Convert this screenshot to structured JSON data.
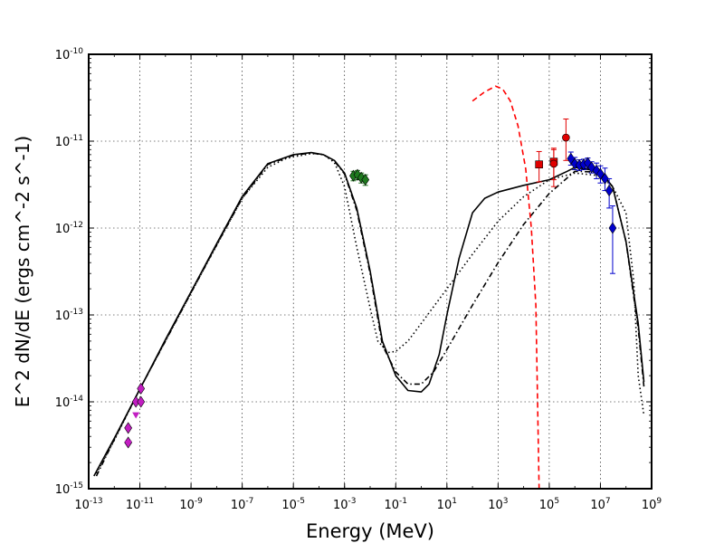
{
  "chart_data": {
    "type": "scatter",
    "title": "",
    "xlabel": "Energy (MeV)",
    "ylabel": "E^2 dN/dE (ergs cm^-2 s^-1)",
    "xscale": "log",
    "yscale": "log",
    "xlim": [
      1e-13,
      1000000000.0
    ],
    "ylim": [
      1e-15,
      1e-10
    ],
    "grid": true,
    "x_ticks": [
      {
        "base": "10",
        "exp": "-13",
        "value": 1e-13
      },
      {
        "base": "10",
        "exp": "-11",
        "value": 1e-11
      },
      {
        "base": "10",
        "exp": "-9",
        "value": 1e-09
      },
      {
        "base": "10",
        "exp": "-7",
        "value": 1e-07
      },
      {
        "base": "10",
        "exp": "-5",
        "value": 1e-05
      },
      {
        "base": "10",
        "exp": "-3",
        "value": 0.001
      },
      {
        "base": "10",
        "exp": "-1",
        "value": 0.1
      },
      {
        "base": "10",
        "exp": "1",
        "value": 10.0
      },
      {
        "base": "10",
        "exp": "3",
        "value": 1000.0
      },
      {
        "base": "10",
        "exp": "5",
        "value": 100000.0
      },
      {
        "base": "10",
        "exp": "7",
        "value": 10000000.0
      },
      {
        "base": "10",
        "exp": "9",
        "value": 1000000000.0
      }
    ],
    "y_ticks": [
      {
        "base": "10",
        "exp": "-15",
        "value": 1e-15
      },
      {
        "base": "10",
        "exp": "-14",
        "value": 1e-14
      },
      {
        "base": "10",
        "exp": "-13",
        "value": 1e-13
      },
      {
        "base": "10",
        "exp": "-12",
        "value": 1e-12
      },
      {
        "base": "10",
        "exp": "-11",
        "value": 1e-11
      },
      {
        "base": "10",
        "exp": "-10",
        "value": 1e-10
      }
    ],
    "series": [
      {
        "style": "solid",
        "color": "#000000",
        "x": [
          1.6e-13,
          1e-12,
          1e-11,
          1e-10,
          1e-09,
          1e-08,
          1e-07,
          1e-06,
          1e-05,
          5e-05,
          0.00015,
          0.0004,
          0.001,
          0.003,
          0.01,
          0.03,
          0.1,
          0.3,
          1,
          2,
          5,
          10,
          30,
          100,
          300,
          1000.0,
          10000.0,
          100000.0,
          500000.0,
          1000000.0,
          10000000.0,
          30000000.0,
          100000000.0,
          300000000.0,
          500000000.0
        ],
        "y": [
          1.4e-15,
          3.8e-15,
          1.4e-14,
          5.2e-14,
          1.85e-13,
          6.6e-13,
          2.3e-12,
          5.5e-12,
          7e-12,
          7.4e-12,
          7e-12,
          6e-12,
          4.3e-12,
          1.7e-12,
          3.2e-13,
          5e-14,
          2e-14,
          1.35e-14,
          1.3e-14,
          1.6e-14,
          3.5e-14,
          1e-13,
          4.5e-13,
          1.5e-12,
          2.2e-12,
          2.6e-12,
          3.1e-12,
          3.6e-12,
          4.5e-12,
          5e-12,
          4.5e-12,
          3e-12,
          7e-13,
          8e-14,
          1.7e-14
        ]
      },
      {
        "style": "dotted",
        "color": "#000000",
        "x": [
          2e-13,
          1e-12,
          1e-11,
          1e-10,
          1e-09,
          1e-08,
          1e-07,
          1e-06,
          5e-06,
          1e-05,
          5e-05,
          0.00015,
          0.0004,
          0.001,
          0.003,
          0.01,
          0.02,
          0.05,
          0.1,
          0.3,
          1,
          10,
          100,
          1000.0,
          10000.0,
          100000.0,
          1000000.0,
          10000000.0,
          30000000.0,
          100000000.0,
          200000000.0,
          300000000.0,
          500000000.0
        ],
        "y": [
          1.5e-15,
          3.6e-15,
          1.4e-14,
          5e-14,
          1.8e-13,
          6.3e-13,
          2.2e-12,
          5e-12,
          6.3e-12,
          6.6e-12,
          7.2e-12,
          7e-12,
          5.7e-12,
          3e-12,
          6e-13,
          1.2e-13,
          5e-14,
          3.7e-14,
          3.8e-14,
          5e-14,
          8e-14,
          2e-13,
          5e-13,
          1.2e-12,
          2.3e-12,
          3.6e-12,
          4.3e-12,
          4e-12,
          3e-12,
          1.5e-12,
          2.5e-13,
          2e-14,
          7e-15
        ]
      },
      {
        "style": "dashdot",
        "color": "#000000",
        "x": [
          2e-13,
          1e-12,
          1e-11,
          1e-10,
          1e-09,
          1e-08,
          1e-07,
          1e-06,
          1e-05,
          5e-05,
          0.00015,
          0.0004,
          0.001,
          0.003,
          0.01,
          0.03,
          0.1,
          0.3,
          1,
          3,
          10,
          100,
          1000.0,
          10000.0,
          100000.0,
          1000000.0,
          10000000.0,
          30000000.0,
          100000000.0,
          300000000.0,
          500000000.0
        ],
        "y": [
          1.4e-15,
          3.7e-15,
          1.4e-14,
          5e-14,
          1.8e-13,
          6.4e-13,
          2.2e-12,
          5.4e-12,
          6.9e-12,
          7.3e-12,
          7e-12,
          5.9e-12,
          4.2e-12,
          1.6e-12,
          3e-13,
          4.5e-14,
          2.2e-14,
          1.6e-14,
          1.6e-14,
          2.2e-14,
          4e-14,
          1.3e-13,
          4e-13,
          1.1e-12,
          2.5e-12,
          4.5e-12,
          4.4e-12,
          3e-12,
          7e-13,
          7e-14,
          1.5e-14
        ]
      },
      {
        "style": "dashed",
        "color": "#ff0000",
        "x": [
          100,
          300,
          800,
          1500,
          3000,
          6000,
          12000.0,
          20000.0,
          30000.0,
          40000.0
        ],
        "y": [
          2.9e-11,
          3.7e-11,
          4.3e-11,
          4e-11,
          2.9e-11,
          1.5e-11,
          4.8e-12,
          1e-12,
          1.3e-13,
          1e-15
        ]
      }
    ],
    "points": [
      {
        "group": "magenta",
        "color": "#c21ec2",
        "shape": "diamond",
        "x": [
          3.5e-12,
          3.5e-12,
          7e-12,
          1.1e-11,
          1.1e-11
        ],
        "y": [
          5e-15,
          3.4e-15,
          1e-14,
          1e-14,
          1.42e-14
        ],
        "yerr_up": [
          0,
          0,
          0,
          0,
          0
        ],
        "yerr_down": [
          0,
          0,
          0,
          0,
          0
        ]
      },
      {
        "group": "magenta-upper-limits",
        "color": "#c21ec2",
        "shape": "triangle-down",
        "x": [
          3.5e-12,
          7e-12
        ],
        "y": [
          3.3e-15,
          7e-15
        ],
        "yerr_up": [
          0,
          0
        ],
        "yerr_down": [
          0,
          0
        ]
      },
      {
        "group": "green",
        "color": "#1e7a1e",
        "shape": "diamond",
        "x": [
          0.0022,
          0.0032,
          0.0045,
          0.0065
        ],
        "y": [
          4e-12,
          4.1e-12,
          3.8e-12,
          3.6e-12
        ],
        "yerr_up": [
          5e-13,
          5e-13,
          5e-13,
          5e-13
        ],
        "yerr_down": [
          5e-13,
          5e-13,
          5e-13,
          5e-13
        ]
      },
      {
        "group": "red",
        "color": "#e00000",
        "shape": "square",
        "x": [
          40000.0,
          150000.0
        ],
        "y": [
          5.4e-12,
          5.8e-12
        ],
        "yerr_up": [
          2.2e-12,
          2.5e-12
        ],
        "yerr_down": [
          2e-12,
          2.2e-12
        ]
      },
      {
        "group": "red-circles",
        "color": "#e00000",
        "shape": "circle",
        "x": [
          150000.0,
          450000.0
        ],
        "y": [
          5.5e-12,
          1.1e-11
        ],
        "yerr_up": [
          2.5e-12,
          7e-12
        ],
        "yerr_down": [
          2.5e-12,
          5e-12
        ]
      },
      {
        "group": "blue",
        "color": "#0000cc",
        "shape": "diamond",
        "x": [
          700000.0,
          1000000.0,
          1500000.0,
          2200000.0,
          3200000.0,
          4500000.0,
          7000000.0,
          10000000.0,
          15000000.0,
          22000000.0,
          30000000.0
        ],
        "y": [
          6.3e-12,
          5.5e-12,
          5.3e-12,
          5.4e-12,
          5.6e-12,
          5e-12,
          4.6e-12,
          4.2e-12,
          3.7e-12,
          2.7e-12,
          1e-12
        ],
        "yerr_up": [
          1.2e-12,
          1e-12,
          8e-13,
          8e-13,
          8e-13,
          8e-13,
          1e-12,
          1e-12,
          1.2e-12,
          1e-12,
          8e-13
        ],
        "yerr_down": [
          1e-12,
          8e-13,
          7e-13,
          7e-13,
          7e-13,
          7e-13,
          9e-13,
          9e-13,
          1e-12,
          1e-12,
          7e-13
        ]
      }
    ]
  }
}
